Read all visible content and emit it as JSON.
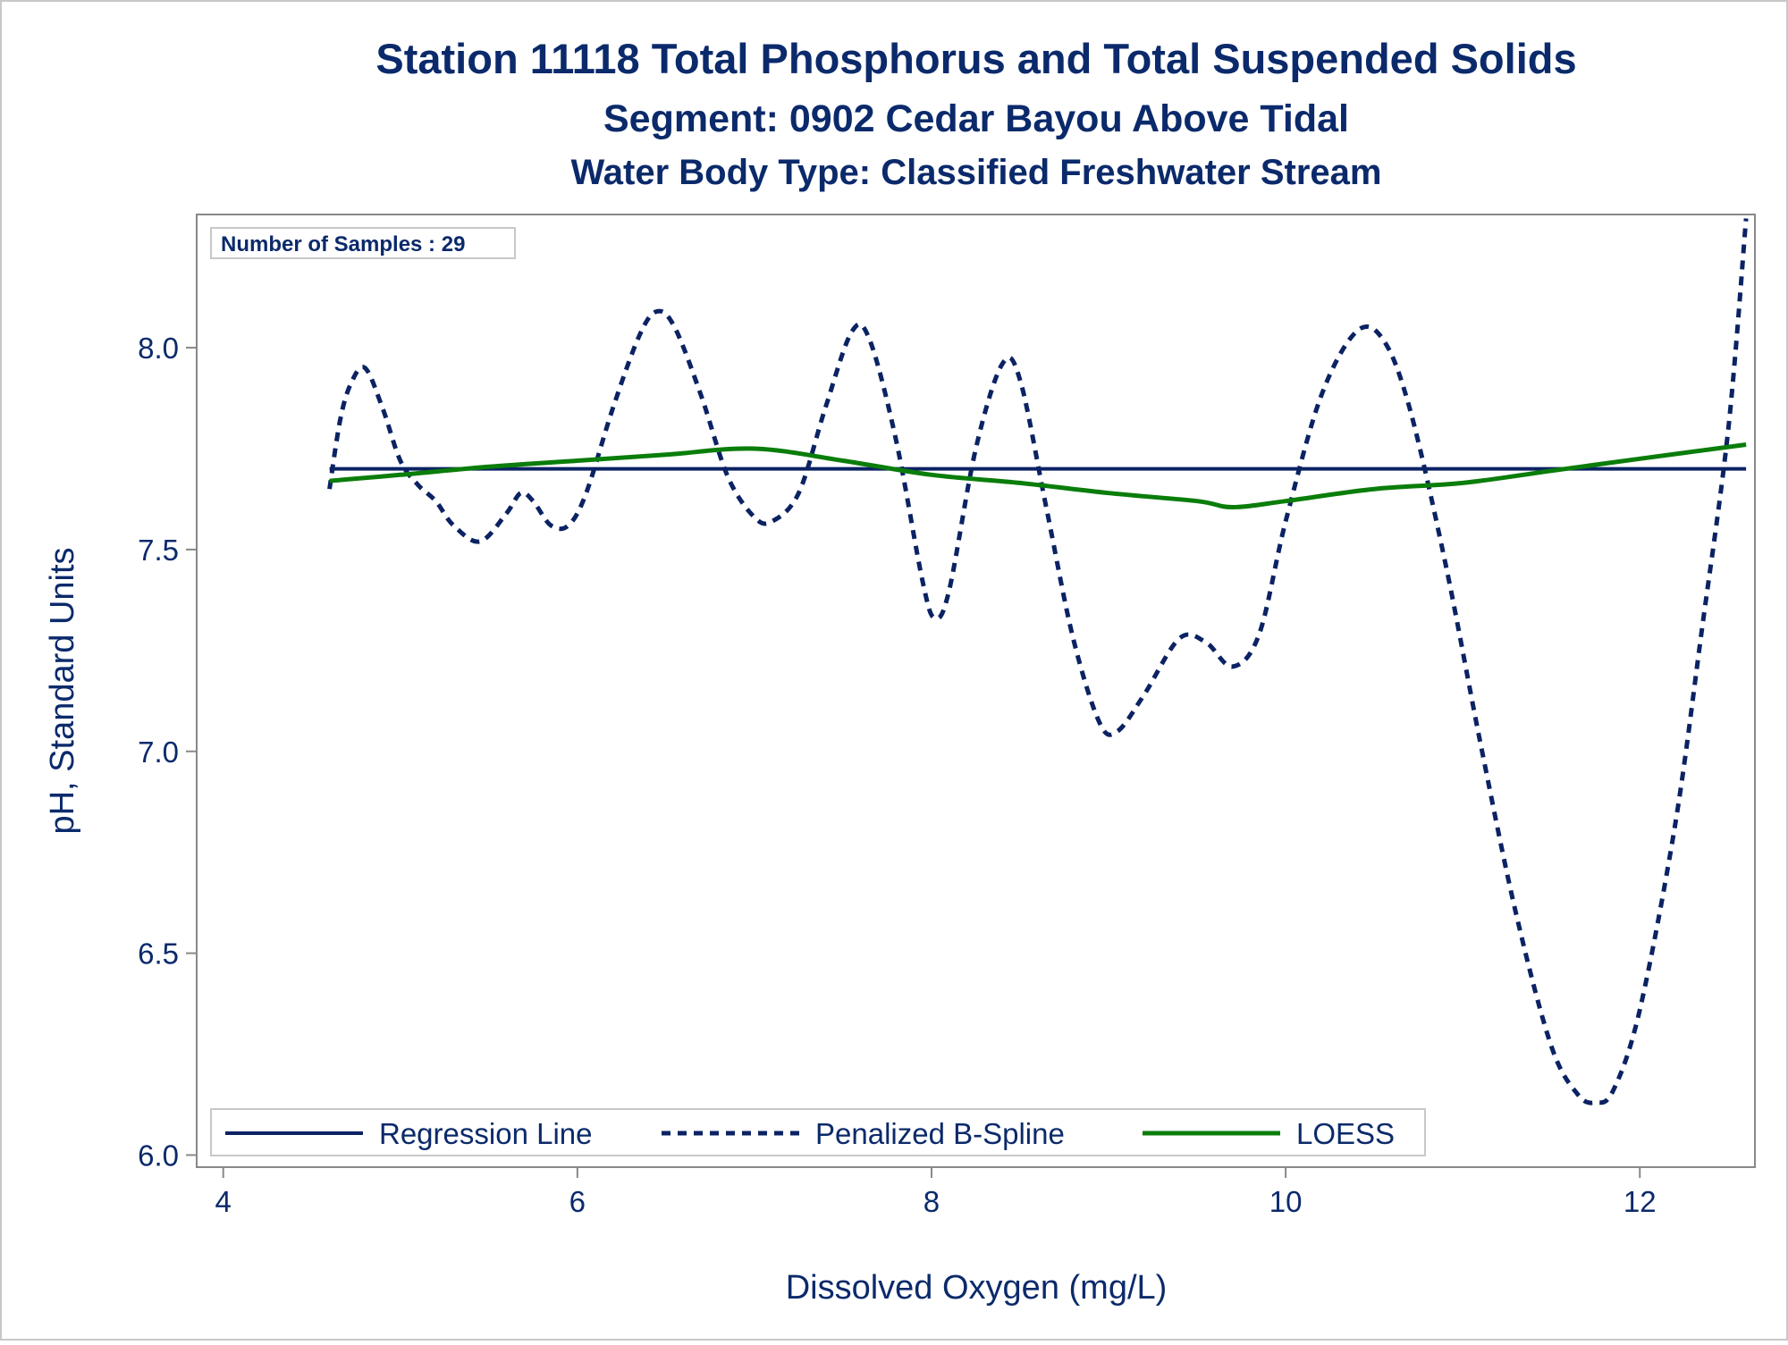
{
  "chart_data": {
    "type": "line",
    "title": "Station 11118  Total Phosphorus and Total Suspended Solids",
    "subtitle": "Segment: 0902  Cedar Bayou Above Tidal",
    "subtitle2": "Water Body Type: Classified Freshwater Stream",
    "xlabel": "Dissolved Oxygen (mg/L)",
    "ylabel": "pH, Standard Units",
    "xlim": [
      3.85,
      12.65
    ],
    "ylim": [
      5.97,
      8.33
    ],
    "x_ticks": [
      4,
      6,
      8,
      10,
      12
    ],
    "y_ticks": [
      6.0,
      6.5,
      7.0,
      7.5,
      8.0
    ],
    "x_tick_labels": [
      "4",
      "6",
      "8",
      "10",
      "12"
    ],
    "y_tick_labels": [
      "6.0",
      "6.5",
      "7.0",
      "7.5",
      "8.0"
    ],
    "grid": false,
    "legend_position": "bottom-left-inside",
    "inset_text": "Number of Samples : 29",
    "colors": {
      "text": "#0b2a6b",
      "regression": "#0b2263",
      "spline": "#0b2263",
      "loess": "#0a7d0a",
      "axis": "#888888",
      "frame": "#c8c8c8"
    },
    "series": [
      {
        "name": "Regression Line",
        "style": "solid",
        "x": [
          4.6,
          12.6
        ],
        "y": [
          7.7,
          7.7
        ]
      },
      {
        "name": "Penalized B-Spline",
        "style": "dashed",
        "x": [
          4.6,
          4.66,
          4.72,
          4.8,
          4.9,
          5.0,
          5.1,
          5.2,
          5.3,
          5.45,
          5.6,
          5.68,
          5.75,
          5.85,
          5.95,
          6.05,
          6.2,
          6.35,
          6.45,
          6.55,
          6.7,
          6.85,
          7.0,
          7.1,
          7.25,
          7.4,
          7.55,
          7.65,
          7.8,
          7.95,
          8.02,
          8.1,
          8.25,
          8.4,
          8.5,
          8.65,
          8.8,
          8.95,
          9.05,
          9.2,
          9.4,
          9.55,
          9.7,
          9.85,
          10.0,
          10.2,
          10.4,
          10.55,
          10.7,
          10.9,
          11.1,
          11.3,
          11.5,
          11.65,
          11.75,
          11.85,
          12.0,
          12.2,
          12.35,
          12.5,
          12.6
        ],
        "y": [
          7.65,
          7.82,
          7.91,
          7.95,
          7.85,
          7.72,
          7.66,
          7.62,
          7.56,
          7.52,
          7.59,
          7.64,
          7.62,
          7.56,
          7.56,
          7.64,
          7.85,
          8.03,
          8.09,
          8.05,
          7.88,
          7.68,
          7.58,
          7.57,
          7.64,
          7.85,
          8.04,
          8.02,
          7.77,
          7.42,
          7.33,
          7.4,
          7.75,
          7.96,
          7.92,
          7.6,
          7.28,
          7.07,
          7.05,
          7.14,
          7.28,
          7.27,
          7.21,
          7.29,
          7.57,
          7.88,
          8.04,
          8.02,
          7.85,
          7.47,
          7.02,
          6.6,
          6.27,
          6.15,
          6.13,
          6.16,
          6.36,
          6.82,
          7.3,
          7.8,
          8.32
        ]
      },
      {
        "name": "LOESS",
        "style": "solid",
        "x": [
          4.6,
          5.0,
          5.5,
          6.0,
          6.5,
          7.0,
          7.5,
          8.0,
          8.5,
          9.0,
          9.5,
          9.7,
          10.0,
          10.5,
          11.0,
          11.5,
          12.0,
          12.6
        ],
        "y": [
          7.67,
          7.685,
          7.705,
          7.72,
          7.735,
          7.75,
          7.72,
          7.685,
          7.665,
          7.64,
          7.62,
          7.605,
          7.62,
          7.65,
          7.665,
          7.695,
          7.725,
          7.76
        ]
      }
    ]
  }
}
